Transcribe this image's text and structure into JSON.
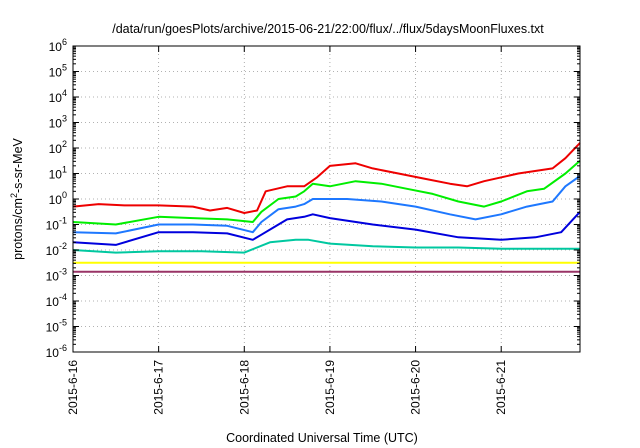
{
  "chart_data": {
    "type": "line",
    "title": "/data/run/goesPlots/archive/2015-06-21/22:00/flux/../flux/5daysMoonFluxes.txt",
    "xlabel": "Coordinated Universal Time (UTC)",
    "ylabel": {
      "pre": "protons/cm",
      "sup": "2",
      "post": "-s-sr-MeV"
    },
    "y_scale": "log",
    "ylim_exponent": [
      -6,
      6
    ],
    "y_ticks": [
      {
        "base": "10",
        "exp": "-6"
      },
      {
        "base": "10",
        "exp": "-5"
      },
      {
        "base": "10",
        "exp": "-4"
      },
      {
        "base": "10",
        "exp": "-3"
      },
      {
        "base": "10",
        "exp": "-2"
      },
      {
        "base": "10",
        "exp": "-1"
      },
      {
        "base": "10",
        "exp": "0"
      },
      {
        "base": "10",
        "exp": "1"
      },
      {
        "base": "10",
        "exp": "2"
      },
      {
        "base": "10",
        "exp": "3"
      },
      {
        "base": "10",
        "exp": "4"
      },
      {
        "base": "10",
        "exp": "5"
      },
      {
        "base": "10",
        "exp": "6"
      }
    ],
    "x_ticks": [
      "2015-6-16",
      "2015-6-17",
      "2015-6-18",
      "2015-6-19",
      "2015-6-20",
      "2015-6-21"
    ],
    "xlim_days": [
      0,
      5.92
    ],
    "grid": true,
    "legend": "none",
    "series": [
      {
        "color": "#ee0000",
        "points": [
          [
            0,
            -0.3
          ],
          [
            0.3,
            -0.2
          ],
          [
            0.6,
            -0.25
          ],
          [
            1.0,
            -0.25
          ],
          [
            1.4,
            -0.3
          ],
          [
            1.6,
            -0.45
          ],
          [
            1.8,
            -0.35
          ],
          [
            2.0,
            -0.55
          ],
          [
            2.15,
            -0.45
          ],
          [
            2.25,
            0.3
          ],
          [
            2.5,
            0.5
          ],
          [
            2.7,
            0.5
          ],
          [
            2.85,
            0.85
          ],
          [
            3.0,
            1.3
          ],
          [
            3.3,
            1.4
          ],
          [
            3.5,
            1.2
          ],
          [
            3.8,
            1.0
          ],
          [
            4.1,
            0.8
          ],
          [
            4.4,
            0.6
          ],
          [
            4.6,
            0.5
          ],
          [
            4.8,
            0.7
          ],
          [
            5.2,
            1.0
          ],
          [
            5.6,
            1.2
          ],
          [
            5.75,
            1.6
          ],
          [
            5.92,
            2.2
          ]
        ]
      },
      {
        "color": "#00ee00",
        "points": [
          [
            0,
            -0.9
          ],
          [
            0.5,
            -1.0
          ],
          [
            1.0,
            -0.7
          ],
          [
            1.4,
            -0.75
          ],
          [
            1.8,
            -0.8
          ],
          [
            2.1,
            -0.9
          ],
          [
            2.2,
            -0.5
          ],
          [
            2.4,
            0.0
          ],
          [
            2.6,
            0.1
          ],
          [
            2.7,
            0.3
          ],
          [
            2.8,
            0.6
          ],
          [
            3.0,
            0.5
          ],
          [
            3.3,
            0.7
          ],
          [
            3.6,
            0.6
          ],
          [
            3.9,
            0.4
          ],
          [
            4.2,
            0.2
          ],
          [
            4.5,
            -0.1
          ],
          [
            4.8,
            -0.3
          ],
          [
            5.0,
            -0.1
          ],
          [
            5.3,
            0.3
          ],
          [
            5.5,
            0.4
          ],
          [
            5.75,
            1.0
          ],
          [
            5.92,
            1.5
          ]
        ]
      },
      {
        "color": "#1e78ff",
        "points": [
          [
            0,
            -1.3
          ],
          [
            0.5,
            -1.35
          ],
          [
            1.0,
            -1.0
          ],
          [
            1.4,
            -1.0
          ],
          [
            1.8,
            -1.05
          ],
          [
            2.1,
            -1.3
          ],
          [
            2.2,
            -0.9
          ],
          [
            2.4,
            -0.4
          ],
          [
            2.6,
            -0.3
          ],
          [
            2.7,
            -0.2
          ],
          [
            2.8,
            0.0
          ],
          [
            3.2,
            0.0
          ],
          [
            3.6,
            -0.1
          ],
          [
            4.0,
            -0.3
          ],
          [
            4.4,
            -0.6
          ],
          [
            4.7,
            -0.8
          ],
          [
            5.0,
            -0.6
          ],
          [
            5.3,
            -0.3
          ],
          [
            5.6,
            -0.1
          ],
          [
            5.75,
            0.5
          ],
          [
            5.92,
            0.9
          ]
        ]
      },
      {
        "color": "#0000dd",
        "points": [
          [
            0,
            -1.7
          ],
          [
            0.5,
            -1.8
          ],
          [
            1.0,
            -1.3
          ],
          [
            1.4,
            -1.3
          ],
          [
            1.8,
            -1.35
          ],
          [
            2.1,
            -1.6
          ],
          [
            2.2,
            -1.4
          ],
          [
            2.35,
            -1.1
          ],
          [
            2.5,
            -0.8
          ],
          [
            2.7,
            -0.7
          ],
          [
            2.8,
            -0.6
          ],
          [
            3.0,
            -0.75
          ],
          [
            3.5,
            -1.0
          ],
          [
            4.0,
            -1.2
          ],
          [
            4.5,
            -1.5
          ],
          [
            5.0,
            -1.6
          ],
          [
            5.4,
            -1.5
          ],
          [
            5.7,
            -1.3
          ],
          [
            5.92,
            -0.5
          ]
        ]
      },
      {
        "color": "#00c8a0",
        "points": [
          [
            0,
            -2.0
          ],
          [
            0.5,
            -2.1
          ],
          [
            1.0,
            -2.05
          ],
          [
            1.5,
            -2.05
          ],
          [
            2.0,
            -2.1
          ],
          [
            2.3,
            -1.7
          ],
          [
            2.6,
            -1.6
          ],
          [
            2.75,
            -1.6
          ],
          [
            3.0,
            -1.75
          ],
          [
            3.5,
            -1.85
          ],
          [
            4.0,
            -1.9
          ],
          [
            4.5,
            -1.9
          ],
          [
            5.0,
            -1.95
          ],
          [
            5.5,
            -1.95
          ],
          [
            5.92,
            -1.95
          ]
        ]
      },
      {
        "color": "#ffff00",
        "points": [
          [
            0,
            -2.5
          ],
          [
            1.0,
            -2.5
          ],
          [
            2.0,
            -2.5
          ],
          [
            3.0,
            -2.5
          ],
          [
            4.0,
            -2.5
          ],
          [
            5.0,
            -2.5
          ],
          [
            5.92,
            -2.5
          ]
        ]
      },
      {
        "color": "#993366",
        "points": [
          [
            0,
            -2.85
          ],
          [
            1.0,
            -2.85
          ],
          [
            2.0,
            -2.85
          ],
          [
            3.0,
            -2.85
          ],
          [
            4.0,
            -2.85
          ],
          [
            5.0,
            -2.85
          ],
          [
            5.92,
            -2.85
          ]
        ]
      }
    ]
  }
}
